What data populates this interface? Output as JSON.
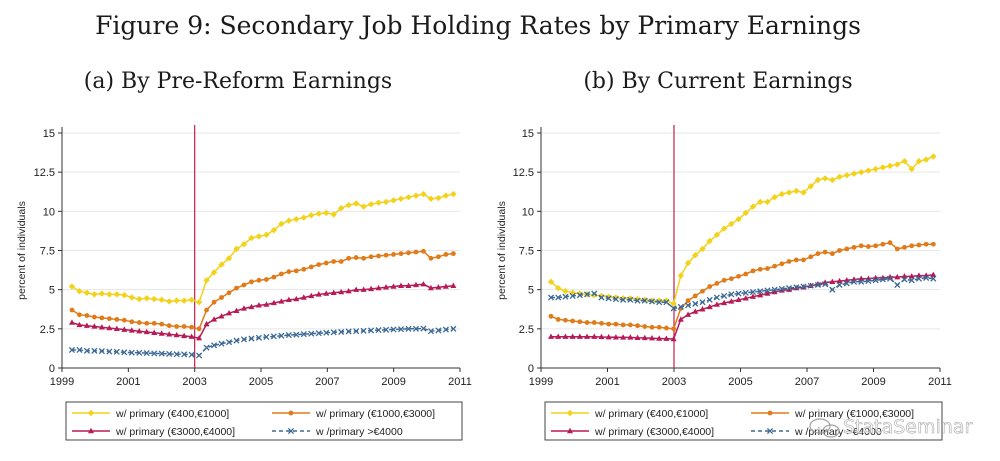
{
  "figure": {
    "title": "Figure 9: Secondary Job Holding Rates by Primary Earnings",
    "watermark": "StataSeminar"
  },
  "chart_data": [
    {
      "type": "line",
      "title": "(a) By Pre-Reform Earnings",
      "xlabel": "",
      "ylabel": "percent of individuals",
      "xlim": [
        1999,
        2011
      ],
      "ylim": [
        0,
        15
      ],
      "xticks": [
        "1999",
        "2001",
        "2003",
        "2005",
        "2007",
        "2009",
        "2011"
      ],
      "yticks": [
        "0",
        "2.5",
        "5",
        "7.5",
        "10",
        "12.5",
        "15"
      ],
      "reference_line_x": 2003,
      "series": [
        {
          "name": "w/ primary (€400,€1000]",
          "color": "#f2d21b",
          "marker": "diamond",
          "values": [
            5.2,
            4.9,
            4.8,
            4.7,
            4.75,
            4.7,
            4.7,
            4.65,
            4.5,
            4.4,
            4.45,
            4.4,
            4.35,
            4.25,
            4.3,
            4.3,
            4.35,
            4.2,
            5.6,
            6.1,
            6.6,
            7.0,
            7.6,
            7.9,
            8.3,
            8.4,
            8.5,
            8.8,
            9.2,
            9.4,
            9.5,
            9.6,
            9.75,
            9.85,
            9.9,
            9.8,
            10.2,
            10.4,
            10.5,
            10.3,
            10.45,
            10.55,
            10.6,
            10.7,
            10.8,
            10.9,
            11.0,
            11.1,
            10.8,
            10.85,
            11.0,
            11.1
          ]
        },
        {
          "name": "w/ primary (€1000,€3000]",
          "color": "#e07b1a",
          "marker": "circle",
          "values": [
            3.7,
            3.4,
            3.35,
            3.25,
            3.2,
            3.15,
            3.1,
            3.05,
            2.95,
            2.9,
            2.85,
            2.85,
            2.8,
            2.7,
            2.65,
            2.65,
            2.6,
            2.5,
            3.7,
            4.2,
            4.5,
            4.8,
            5.1,
            5.3,
            5.5,
            5.6,
            5.65,
            5.8,
            6.0,
            6.15,
            6.2,
            6.3,
            6.45,
            6.6,
            6.7,
            6.8,
            6.8,
            7.0,
            7.05,
            7.0,
            7.1,
            7.15,
            7.2,
            7.25,
            7.3,
            7.35,
            7.4,
            7.45,
            7.0,
            7.1,
            7.25,
            7.3
          ]
        },
        {
          "name": "w/ primary (€3000,€4000]",
          "color": "#b81a55",
          "marker": "triangle",
          "values": [
            2.9,
            2.75,
            2.7,
            2.65,
            2.6,
            2.55,
            2.5,
            2.45,
            2.4,
            2.35,
            2.3,
            2.25,
            2.2,
            2.15,
            2.1,
            2.05,
            2.0,
            1.9,
            2.8,
            3.1,
            3.3,
            3.5,
            3.65,
            3.8,
            3.9,
            4.0,
            4.05,
            4.15,
            4.25,
            4.35,
            4.4,
            4.5,
            4.6,
            4.7,
            4.75,
            4.8,
            4.85,
            4.9,
            5.0,
            5.0,
            5.05,
            5.1,
            5.15,
            5.2,
            5.25,
            5.25,
            5.3,
            5.35,
            5.1,
            5.15,
            5.2,
            5.25
          ]
        },
        {
          "name": "w /primary >€4000",
          "color": "#3c6a96",
          "marker": "cross",
          "dashed": true,
          "values": [
            1.15,
            1.15,
            1.1,
            1.1,
            1.08,
            1.05,
            1.03,
            1.0,
            0.98,
            0.97,
            0.95,
            0.93,
            0.92,
            0.9,
            0.88,
            0.87,
            0.85,
            0.8,
            1.3,
            1.45,
            1.55,
            1.65,
            1.75,
            1.82,
            1.88,
            1.93,
            1.98,
            2.02,
            2.06,
            2.1,
            2.13,
            2.16,
            2.19,
            2.22,
            2.25,
            2.28,
            2.3,
            2.33,
            2.35,
            2.37,
            2.4,
            2.42,
            2.44,
            2.46,
            2.48,
            2.5,
            2.5,
            2.52,
            2.35,
            2.4,
            2.45,
            2.5
          ]
        }
      ],
      "legend": {
        "placement": "bottom"
      }
    },
    {
      "type": "line",
      "title": "(b) By Current Earnings",
      "xlabel": "",
      "ylabel": "percent of individuals",
      "xlim": [
        1999,
        2011
      ],
      "ylim": [
        0,
        15
      ],
      "xticks": [
        "1999",
        "2001",
        "2003",
        "2005",
        "2007",
        "2009",
        "2011"
      ],
      "yticks": [
        "0",
        "2.5",
        "5",
        "7.5",
        "10",
        "12.5",
        "15"
      ],
      "reference_line_x": 2003,
      "series": [
        {
          "name": "w/ primary (€400,€1000]",
          "color": "#f2d21b",
          "marker": "diamond",
          "values": [
            5.5,
            5.1,
            4.9,
            4.8,
            4.75,
            4.7,
            4.65,
            4.6,
            4.55,
            4.5,
            4.45,
            4.45,
            4.4,
            4.35,
            4.3,
            4.3,
            4.3,
            4.1,
            5.9,
            6.7,
            7.2,
            7.6,
            8.1,
            8.5,
            8.9,
            9.2,
            9.5,
            9.9,
            10.3,
            10.6,
            10.6,
            10.9,
            11.1,
            11.2,
            11.3,
            11.2,
            11.6,
            12.0,
            12.1,
            12.0,
            12.2,
            12.3,
            12.4,
            12.5,
            12.6,
            12.7,
            12.8,
            12.9,
            13.0,
            13.2,
            12.7,
            13.2,
            13.3,
            13.5
          ]
        },
        {
          "name": "w/ primary (€1000,€3000]",
          "color": "#e07b1a",
          "marker": "circle",
          "values": [
            3.3,
            3.1,
            3.05,
            3.0,
            2.95,
            2.9,
            2.9,
            2.85,
            2.8,
            2.8,
            2.75,
            2.75,
            2.7,
            2.65,
            2.6,
            2.6,
            2.55,
            2.5,
            3.8,
            4.3,
            4.6,
            4.9,
            5.2,
            5.4,
            5.6,
            5.7,
            5.85,
            6.0,
            6.2,
            6.3,
            6.35,
            6.5,
            6.65,
            6.8,
            6.9,
            6.9,
            7.1,
            7.3,
            7.4,
            7.3,
            7.5,
            7.6,
            7.7,
            7.8,
            7.75,
            7.8,
            7.9,
            8.0,
            7.6,
            7.7,
            7.8,
            7.85,
            7.9,
            7.9
          ]
        },
        {
          "name": "w/ primary (€3000,€4000]",
          "color": "#b81a55",
          "marker": "triangle",
          "values": [
            2.0,
            2.0,
            2.0,
            2.0,
            2.0,
            2.0,
            2.0,
            1.98,
            1.97,
            1.96,
            1.95,
            1.95,
            1.93,
            1.92,
            1.9,
            1.88,
            1.87,
            1.85,
            3.1,
            3.4,
            3.6,
            3.75,
            3.9,
            4.05,
            4.15,
            4.25,
            4.35,
            4.45,
            4.55,
            4.65,
            4.75,
            4.85,
            4.95,
            5.0,
            5.1,
            5.15,
            5.25,
            5.35,
            5.45,
            5.5,
            5.55,
            5.6,
            5.65,
            5.7,
            5.7,
            5.75,
            5.75,
            5.8,
            5.8,
            5.85,
            5.85,
            5.9,
            5.9,
            5.95
          ]
        },
        {
          "name": "w /primary >€4000",
          "color": "#3c6a96",
          "marker": "cross",
          "dashed": true,
          "values": [
            4.5,
            4.5,
            4.55,
            4.6,
            4.65,
            4.7,
            4.75,
            4.5,
            4.45,
            4.4,
            4.35,
            4.35,
            4.3,
            4.3,
            4.25,
            4.2,
            4.2,
            3.8,
            3.9,
            4.0,
            4.1,
            4.2,
            4.35,
            4.5,
            4.6,
            4.7,
            4.75,
            4.8,
            4.85,
            4.9,
            4.95,
            5.0,
            5.05,
            5.1,
            5.15,
            5.2,
            5.25,
            5.3,
            5.35,
            5.0,
            5.3,
            5.4,
            5.5,
            5.5,
            5.55,
            5.6,
            5.65,
            5.7,
            5.3,
            5.65,
            5.6,
            5.7,
            5.75,
            5.7
          ]
        }
      ],
      "legend": {
        "placement": "bottom"
      }
    }
  ]
}
